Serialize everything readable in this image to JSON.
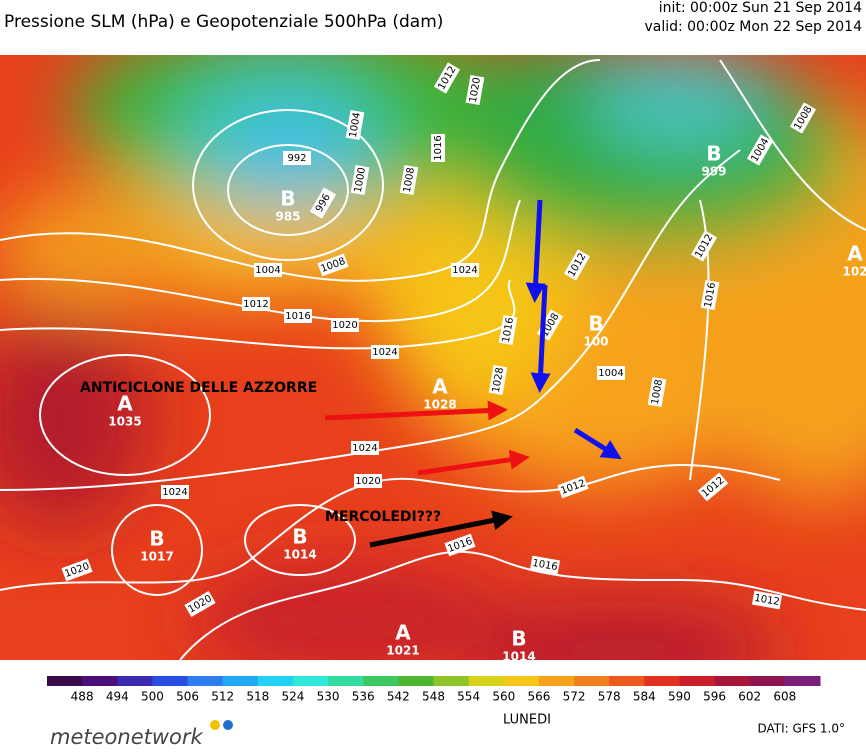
{
  "header": {
    "title": "Pressione SLM (hPa) e Geopotenziale 500hPa (dam)",
    "init": "init: 00:00z Sun 21 Sep 2014",
    "valid": "valid: 00:00z Mon 22 Sep 2014"
  },
  "map": {
    "annotations": [
      "ANTICICLONE DELLE AZZORRE",
      "MERCOLEDI???"
    ],
    "centers": [
      {
        "label": "B",
        "value": "985"
      },
      {
        "label": "B",
        "value": "999"
      },
      {
        "label": "A",
        "value": "102"
      },
      {
        "label": "B",
        "value": "100"
      },
      {
        "label": "A",
        "value": "1035"
      },
      {
        "label": "A",
        "value": "1028"
      },
      {
        "label": "B",
        "value": "1017"
      },
      {
        "label": "B",
        "value": "1014"
      },
      {
        "label": "A",
        "value": "1021"
      },
      {
        "label": "B",
        "value": "1014"
      }
    ],
    "isobar_labels": [
      "992",
      "996",
      "1000",
      "1004",
      "1008",
      "1016",
      "1012",
      "1020",
      "1004",
      "1008",
      "1012",
      "1016",
      "1020",
      "1024",
      "1024",
      "1016",
      "1008",
      "1012",
      "1028",
      "1004",
      "1008",
      "1012",
      "1016",
      "1004",
      "1008",
      "1024",
      "1020",
      "1024",
      "1020",
      "1020",
      "1016",
      "1016",
      "1012",
      "1012",
      "1012"
    ]
  },
  "colorbar": {
    "ticks": [
      "488",
      "494",
      "500",
      "506",
      "512",
      "518",
      "524",
      "530",
      "536",
      "542",
      "548",
      "554",
      "560",
      "566",
      "572",
      "578",
      "584",
      "590",
      "596",
      "602",
      "608"
    ],
    "caption": "LUNEDI"
  },
  "footer": {
    "logo": "meteonetwork",
    "source": "DATI: GFS 1.0°"
  }
}
